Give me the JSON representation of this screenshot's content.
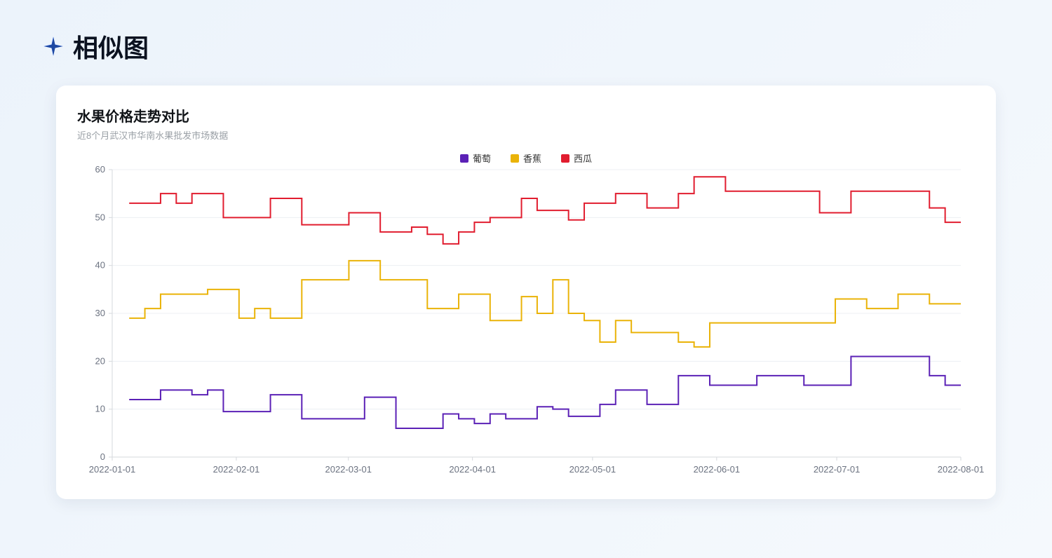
{
  "page": {
    "header_title": "相似图"
  },
  "chart": {
    "type": "step-line",
    "title": "水果价格走势对比",
    "subtitle": "近8个月武汉市华南水果批发市场数据",
    "background_color": "#ffffff",
    "grid_color": "#eceff3",
    "axis_color": "#d6d9dd",
    "tick_label_color": "#6b7280",
    "title_fontsize": 20,
    "subtitle_fontsize": 13,
    "line_width": 2,
    "y": {
      "min": 0,
      "max": 60,
      "ticks": [
        0,
        10,
        20,
        30,
        40,
        50,
        60
      ]
    },
    "x": {
      "start": "2022-01-01",
      "end": "2022-08-01",
      "tick_labels": [
        "2022-01-01",
        "2022-02-01",
        "2022-03-01",
        "2022-04-01",
        "2022-05-01",
        "2022-06-01",
        "2022-07-01",
        "2022-08-01"
      ],
      "tick_positions_days": [
        0,
        31,
        59,
        90,
        120,
        151,
        181,
        212
      ]
    },
    "legend_position": "top-center",
    "series": [
      {
        "name": "葡萄",
        "color": "#5b21b6",
        "values": [
          12,
          12,
          14,
          14,
          13,
          14,
          9.5,
          9.5,
          9.5,
          13,
          13,
          8,
          8,
          8,
          8,
          12.5,
          12.5,
          6,
          6,
          6,
          9,
          8,
          7,
          9,
          8,
          8,
          10.5,
          10,
          8.5,
          8.5,
          11,
          14,
          14,
          11,
          11,
          17,
          17,
          15,
          15,
          15,
          17,
          17,
          17,
          15,
          15,
          15,
          21,
          21,
          21,
          21,
          21,
          17,
          15
        ]
      },
      {
        "name": "香蕉",
        "color": "#eab308",
        "values": [
          29,
          31,
          34,
          34,
          34,
          35,
          35,
          29,
          31,
          29,
          29,
          37,
          37,
          37,
          41,
          41,
          37,
          37,
          37,
          31,
          31,
          34,
          34,
          28.5,
          28.5,
          33.5,
          30,
          37,
          30,
          28.5,
          24,
          28.5,
          26,
          26,
          26,
          24,
          23,
          28,
          28,
          28,
          28,
          28,
          28,
          28,
          28,
          33,
          33,
          31,
          31,
          34,
          34,
          32,
          32
        ]
      },
      {
        "name": "西瓜",
        "color": "#e11d2f",
        "values": [
          53,
          53,
          55,
          53,
          55,
          55,
          50,
          50,
          50,
          54,
          54,
          48.5,
          48.5,
          48.5,
          51,
          51,
          47,
          47,
          48,
          46.5,
          44.5,
          47,
          49,
          50,
          50,
          54,
          51.5,
          51.5,
          49.5,
          53,
          53,
          55,
          55,
          52,
          52,
          55,
          58.5,
          58.5,
          55.5,
          55.5,
          55.5,
          55.5,
          55.5,
          55.5,
          51,
          51,
          55.5,
          55.5,
          55.5,
          55.5,
          55.5,
          52,
          49
        ]
      }
    ]
  }
}
